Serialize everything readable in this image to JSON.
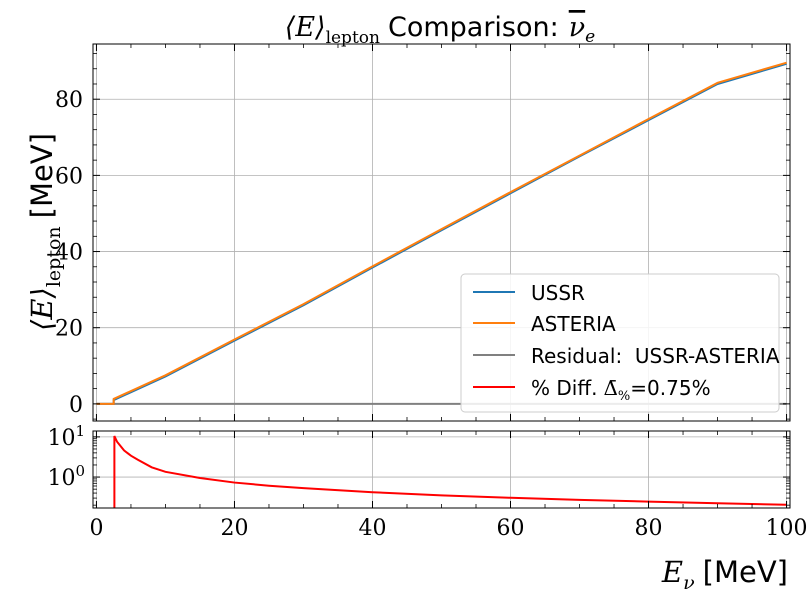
{
  "chart_data": [
    {
      "type": "line",
      "title_math": "⟨E⟩",
      "title_math_sub": "lepton",
      "title_text": "Comparison:",
      "title_nu": "ν",
      "title_nu_sub": "e",
      "ylabel_math": "⟨E⟩",
      "ylabel_sub": "lepton",
      "ylabel_unit": "[MeV]",
      "xlim": [
        -0.5,
        100.5
      ],
      "ylim": [
        -4.5,
        94.5
      ],
      "xticks": [
        0,
        20,
        40,
        60,
        80,
        100
      ],
      "yticks": [
        0,
        20,
        40,
        60,
        80
      ],
      "grid": true,
      "legend_position": "bottom-right",
      "series": [
        {
          "name": "USSR",
          "color": "#1f77b4",
          "x": [
            0,
            2.5,
            2.5,
            10,
            20,
            30,
            40,
            50,
            60,
            70,
            80,
            90,
            100
          ],
          "y": [
            0,
            0,
            1.0,
            7.2,
            16.6,
            25.9,
            35.8,
            45.6,
            55.3,
            65.0,
            74.5,
            84.0,
            89.3
          ]
        },
        {
          "name": "ASTERIA",
          "color": "#ff7f0e",
          "x": [
            0,
            2.5,
            2.5,
            10,
            20,
            30,
            40,
            50,
            60,
            70,
            80,
            90,
            100
          ],
          "y": [
            0,
            0,
            1.3,
            7.5,
            16.9,
            26.2,
            36.1,
            45.9,
            55.6,
            65.2,
            74.8,
            84.3,
            89.6
          ]
        },
        {
          "name": "Residual:  USSR-ASTERIA",
          "color": "#808080",
          "x": [
            0,
            100
          ],
          "y": [
            0,
            0
          ]
        },
        {
          "name": "% Diff.",
          "name_math": "Δ̄",
          "name_sub": "%",
          "name_value": "=0.75%",
          "color": "#ff0000"
        }
      ]
    },
    {
      "type": "line",
      "xlabel_math": "E",
      "xlabel_sub": "ν",
      "xlabel_unit": "[MeV]",
      "xlim": [
        -0.5,
        100.5
      ],
      "ylim": [
        0.17,
        14
      ],
      "yscale": "log",
      "xticks": [
        0,
        20,
        40,
        60,
        80,
        100
      ],
      "yticks": [
        {
          "value": 1,
          "base": "10",
          "exp": "0"
        },
        {
          "value": 10,
          "base": "10",
          "exp": "1"
        }
      ],
      "grid": true,
      "series": [
        {
          "name": "% Diff.",
          "color": "#ff0000",
          "x": [
            2.6,
            2.6,
            3,
            4,
            5,
            6,
            8,
            10,
            15,
            20,
            25,
            30,
            40,
            50,
            60,
            70,
            80,
            90,
            100
          ],
          "y": [
            0.17,
            10.5,
            7.5,
            4.6,
            3.4,
            2.7,
            1.75,
            1.35,
            0.95,
            0.73,
            0.61,
            0.53,
            0.42,
            0.35,
            0.305,
            0.27,
            0.245,
            0.223,
            0.205
          ]
        }
      ]
    }
  ]
}
